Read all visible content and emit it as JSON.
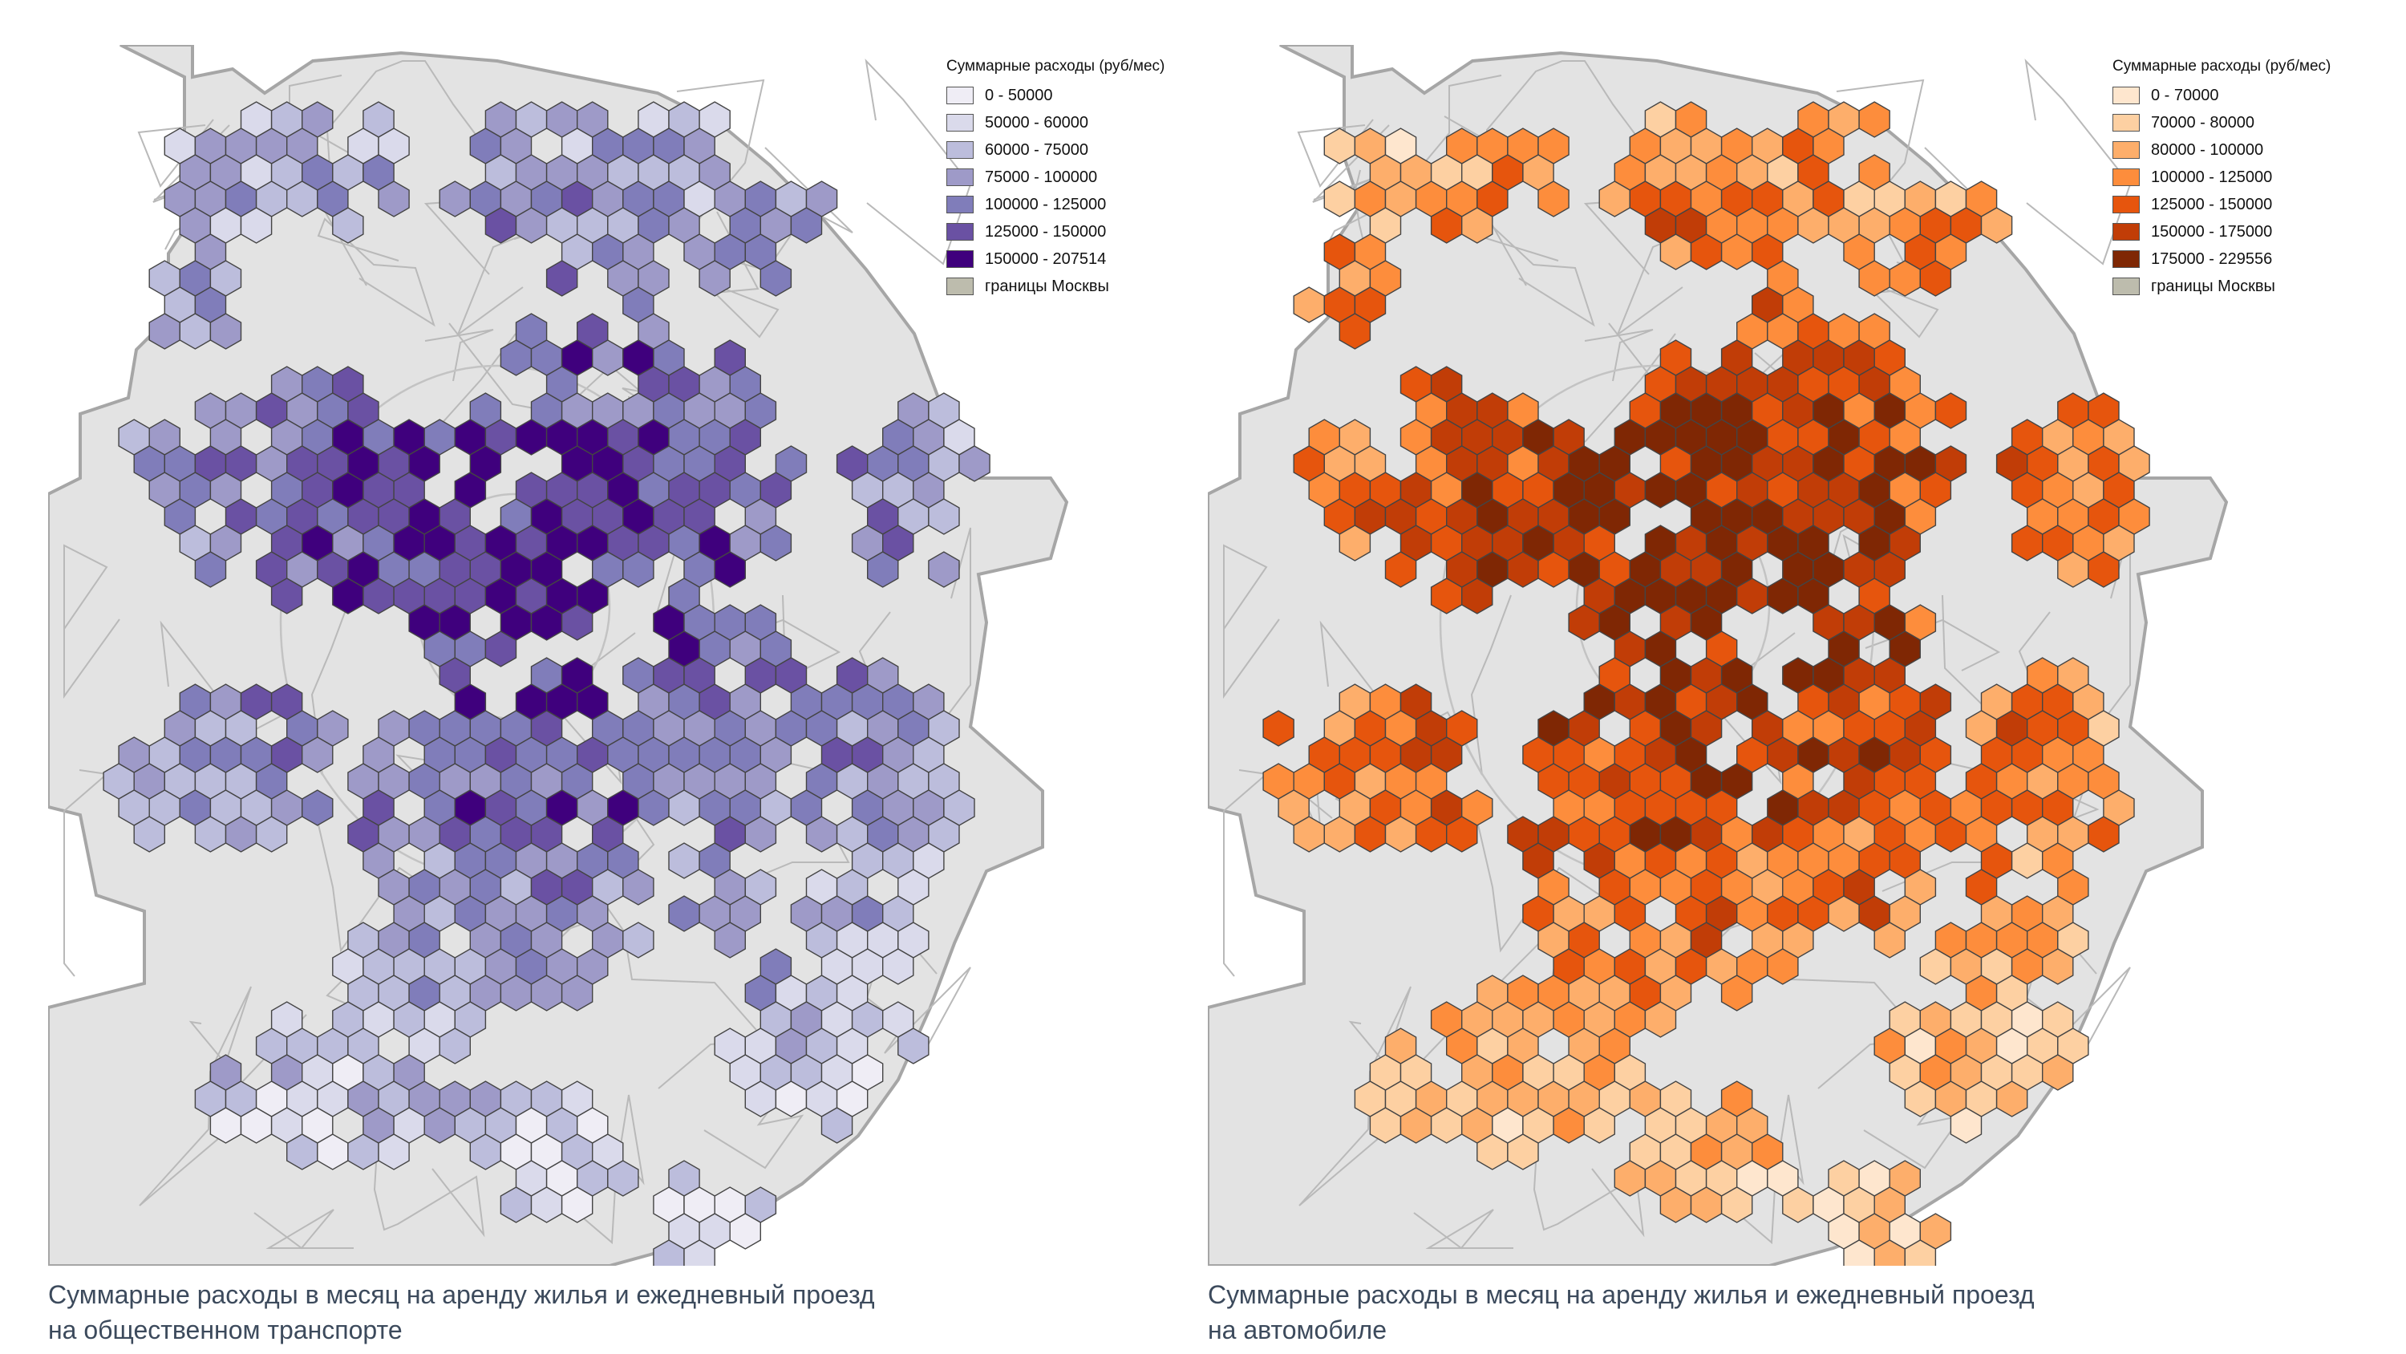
{
  "maps": [
    {
      "id": "left",
      "legend_title": "Суммарные расходы (руб/мес)",
      "legend": [
        {
          "label": "0 - 50000",
          "color": "#efedf5"
        },
        {
          "label": "50000 - 60000",
          "color": "#dadaeb"
        },
        {
          "label": "60000 - 75000",
          "color": "#bcbddc"
        },
        {
          "label": "75000 - 100000",
          "color": "#9e9ac8"
        },
        {
          "label": "100000 - 125000",
          "color": "#807dba"
        },
        {
          "label": "125000 - 150000",
          "color": "#6a51a3"
        },
        {
          "label": "150000 - 207514",
          "color": "#3f007d"
        },
        {
          "label": "границы Москвы",
          "color": "#bdbcad"
        }
      ],
      "caption": "Суммарные расходы в месяц на аренду жилья и ежедневный проезд\nна общественном транспорте"
    },
    {
      "id": "right",
      "legend_title": "Суммарные расходы (руб/мес)",
      "legend": [
        {
          "label": "0 - 70000",
          "color": "#fee6ce"
        },
        {
          "label": "70000 - 80000",
          "color": "#fdd0a2"
        },
        {
          "label": "80000 - 100000",
          "color": "#fdae6b"
        },
        {
          "label": "100000 - 125000",
          "color": "#fd8d3c"
        },
        {
          "label": "125000 - 150000",
          "color": "#e6550d"
        },
        {
          "label": "150000 - 175000",
          "color": "#c13d07"
        },
        {
          "label": "175000 - 229556",
          "color": "#7f2704"
        },
        {
          "label": "границы Москвы",
          "color": "#bdbcad"
        }
      ],
      "caption": "Суммарные расходы в месяц на аренду жилья и ежедневный проезд\nна автомобиле"
    }
  ]
}
